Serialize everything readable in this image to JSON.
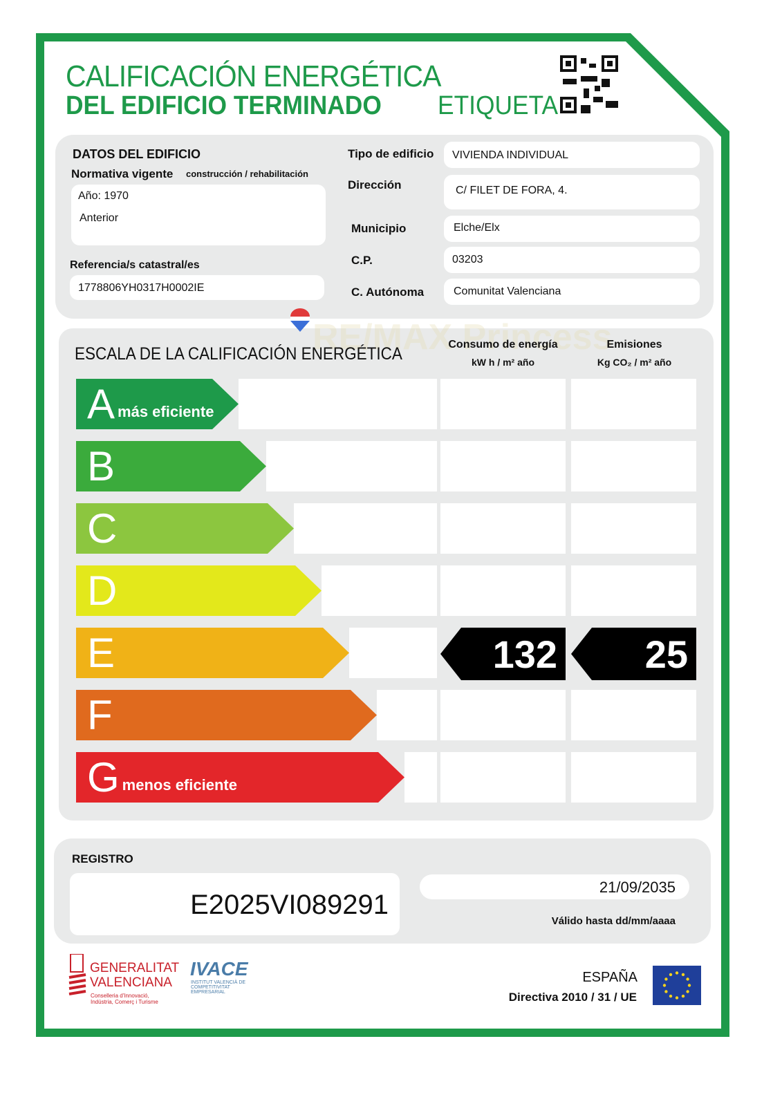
{
  "header": {
    "title_line1": "CALIFICACIÓN ENERGÉTICA",
    "title_line2": "DEL EDIFICIO  TERMINADO",
    "title_line3": "ETIQUETA",
    "qr_icon": "qr-code-icon"
  },
  "building": {
    "heading": "DATOS DEL EDIFICIO",
    "normativa_label": "Normativa vigente",
    "normativa_sub": "construcción / rehabilitación",
    "year": "Año: 1970",
    "normativa": "Anterior",
    "ref_label": "Referencia/s catastral/es",
    "ref": "1778806YH0317H0002IE",
    "fields": [
      {
        "label": "Tipo de edificio",
        "value": "VIVIENDA INDIVIDUAL"
      },
      {
        "label": "Dirección",
        "value": "C/ FILET DE FORA, 4."
      },
      {
        "label": "Municipio",
        "value": "Elche/Elx"
      },
      {
        "label": "C.P.",
        "value": "03203"
      },
      {
        "label": "C. Autónoma",
        "value": "Comunitat Valenciana"
      }
    ]
  },
  "scale": {
    "heading": "ESCALA DE LA CALIFICACIÓN ENERGÉTICA",
    "consumo_label": "Consumo de energía",
    "consumo_unit": "kW h / m² año",
    "emis_label": "Emisiones",
    "emis_unit": "Kg CO₂ / m² año",
    "classes": [
      {
        "letter": "A",
        "sub": "más eficiente",
        "color": "#1e9a4a"
      },
      {
        "letter": "B",
        "sub": "",
        "color": "#3bab3c"
      },
      {
        "letter": "C",
        "sub": "",
        "color": "#8cc63f"
      },
      {
        "letter": "D",
        "sub": "",
        "color": "#e3e81b"
      },
      {
        "letter": "E",
        "sub": "",
        "color": "#f0b217"
      },
      {
        "letter": "F",
        "sub": "",
        "color": "#e06a1e"
      },
      {
        "letter": "G",
        "sub": "menos eficiente",
        "color": "#e3262a"
      }
    ],
    "rating": "E",
    "consumo": "132",
    "emisiones": "25"
  },
  "registro": {
    "label": "REGISTRO",
    "number": "E2025VI089291",
    "valid_date": "21/09/2035",
    "valid_label": "Válido hasta dd/mm/aaaa"
  },
  "footer": {
    "gva_line1": "GENERALITAT",
    "gva_line2": "VALENCIANA",
    "gva_sub": "Conselleria d'Innovació, Indústria, Comerç i Turisme",
    "ivace": "IVACE",
    "ivace_sub": "INSTITUT VALENCIÀ DE COMPETITIVITAT EMPRESARIAL",
    "country": "ESPAÑA",
    "directive": "Directiva 2010 / 31 / UE"
  },
  "watermark": "RE/MAX Princess",
  "colors": {
    "frame": "#1e9a4a"
  }
}
